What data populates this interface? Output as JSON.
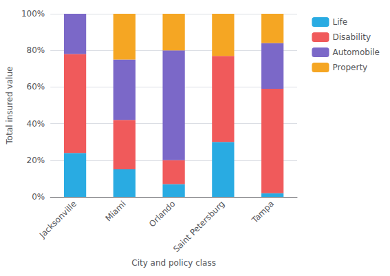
{
  "chart_data": {
    "type": "bar",
    "stacked": true,
    "categories": [
      "Jacksonville",
      "Miami",
      "Orlando",
      "Saint Petersburg",
      "Tampa"
    ],
    "series": [
      {
        "name": "Life",
        "color": "#29ABE2",
        "values": [
          24,
          15,
          7,
          30,
          2
        ]
      },
      {
        "name": "Disability",
        "color": "#F05A5B",
        "values": [
          54,
          27,
          13,
          47,
          57
        ]
      },
      {
        "name": "Automobile",
        "color": "#7B68C8",
        "values": [
          22,
          33,
          60,
          0,
          25
        ]
      },
      {
        "name": "Property",
        "color": "#F5A623",
        "values": [
          0,
          25,
          20,
          23,
          16
        ]
      }
    ],
    "xlabel": "City and policy class",
    "ylabel": "Total insured value",
    "ylim": [
      0,
      100
    ],
    "yticks": [
      {
        "value": 0,
        "label": "0%"
      },
      {
        "value": 20,
        "label": "20%"
      },
      {
        "value": 40,
        "label": "40%"
      },
      {
        "value": 60,
        "label": "60%"
      },
      {
        "value": 80,
        "label": "80%"
      },
      {
        "value": 100,
        "label": "100%"
      }
    ],
    "grid": true,
    "legend": "right"
  }
}
